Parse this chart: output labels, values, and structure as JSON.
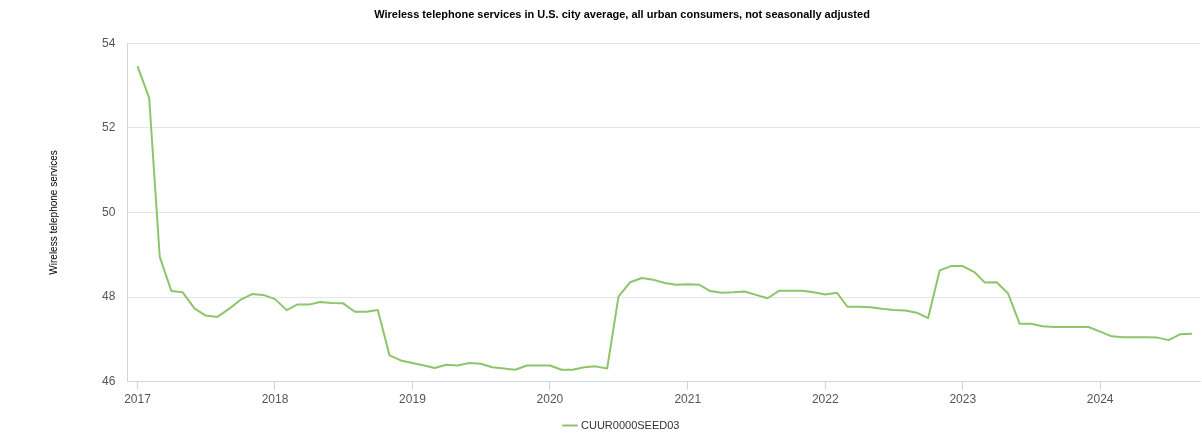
{
  "chart_data": {
    "type": "line",
    "title": "Wireless telephone services in U.S. city average, all urban consumers, not seasonally adjusted",
    "ylabel": "Wireless telephone services",
    "x": [
      "2017-01",
      "2017-02",
      "2017-03",
      "2017-04",
      "2017-05",
      "2017-06",
      "2017-07",
      "2017-08",
      "2017-09",
      "2017-10",
      "2017-11",
      "2017-12",
      "2018-01",
      "2018-02",
      "2018-03",
      "2018-04",
      "2018-05",
      "2018-06",
      "2018-07",
      "2018-08",
      "2018-09",
      "2018-10",
      "2018-11",
      "2018-12",
      "2019-01",
      "2019-02",
      "2019-03",
      "2019-04",
      "2019-05",
      "2019-06",
      "2019-07",
      "2019-08",
      "2019-09",
      "2019-10",
      "2019-11",
      "2019-12",
      "2020-01",
      "2020-02",
      "2020-03",
      "2020-04",
      "2020-05",
      "2020-06",
      "2020-07",
      "2020-08",
      "2020-09",
      "2020-10",
      "2020-11",
      "2020-12",
      "2021-01",
      "2021-02",
      "2021-03",
      "2021-04",
      "2021-05",
      "2021-06",
      "2021-07",
      "2021-08",
      "2021-09",
      "2021-10",
      "2021-11",
      "2021-12",
      "2022-01",
      "2022-02",
      "2022-03",
      "2022-04",
      "2022-05",
      "2022-06",
      "2022-07",
      "2022-08",
      "2022-09",
      "2022-10",
      "2022-11",
      "2022-12",
      "2023-01",
      "2023-02",
      "2023-03",
      "2023-04",
      "2023-05",
      "2023-06",
      "2023-07",
      "2023-08",
      "2023-09",
      "2023-10",
      "2023-11",
      "2023-12",
      "2024-01",
      "2024-02",
      "2024-03",
      "2024-04",
      "2024-05",
      "2024-06",
      "2024-07",
      "2024-08",
      "2024-09"
    ],
    "series": [
      {
        "name": "CUUR0000SEED03",
        "color": "#8cc56a",
        "values": [
          53.46,
          52.7,
          48.95,
          48.14,
          48.11,
          47.73,
          47.56,
          47.53,
          47.72,
          47.93,
          48.07,
          48.05,
          47.95,
          47.69,
          47.82,
          47.82,
          47.88,
          47.86,
          47.85,
          47.65,
          47.65,
          47.69,
          46.62,
          46.5,
          46.44,
          46.38,
          46.32,
          46.4,
          46.38,
          46.44,
          46.42,
          46.34,
          46.31,
          46.28,
          46.38,
          46.38,
          46.38,
          46.28,
          46.28,
          46.34,
          46.36,
          46.31,
          48.01,
          48.35,
          48.45,
          48.41,
          48.33,
          48.29,
          48.3,
          48.29,
          48.14,
          48.1,
          48.11,
          48.13,
          48.05,
          47.97,
          48.15,
          48.15,
          48.15,
          48.11,
          48.06,
          48.1,
          47.77,
          47.77,
          47.76,
          47.72,
          47.69,
          47.68,
          47.63,
          47.5,
          48.63,
          48.73,
          48.73,
          48.59,
          48.34,
          48.35,
          48.09,
          47.37,
          47.37,
          47.31,
          47.29,
          47.29,
          47.29,
          47.29,
          47.18,
          47.07,
          47.05,
          47.05,
          47.05,
          47.04,
          46.98,
          47.12,
          47.13
        ]
      }
    ],
    "xlim": [
      "2016-12-05",
      "2024-09-22"
    ],
    "xticks": [
      "2017",
      "2018",
      "2019",
      "2020",
      "2021",
      "2022",
      "2023",
      "2024"
    ],
    "ylim": [
      46,
      54
    ],
    "yticks": [
      46,
      48,
      50,
      52,
      54
    ],
    "grid": "y",
    "legend": "bottom",
    "marker": "none",
    "line_style": "solid"
  }
}
